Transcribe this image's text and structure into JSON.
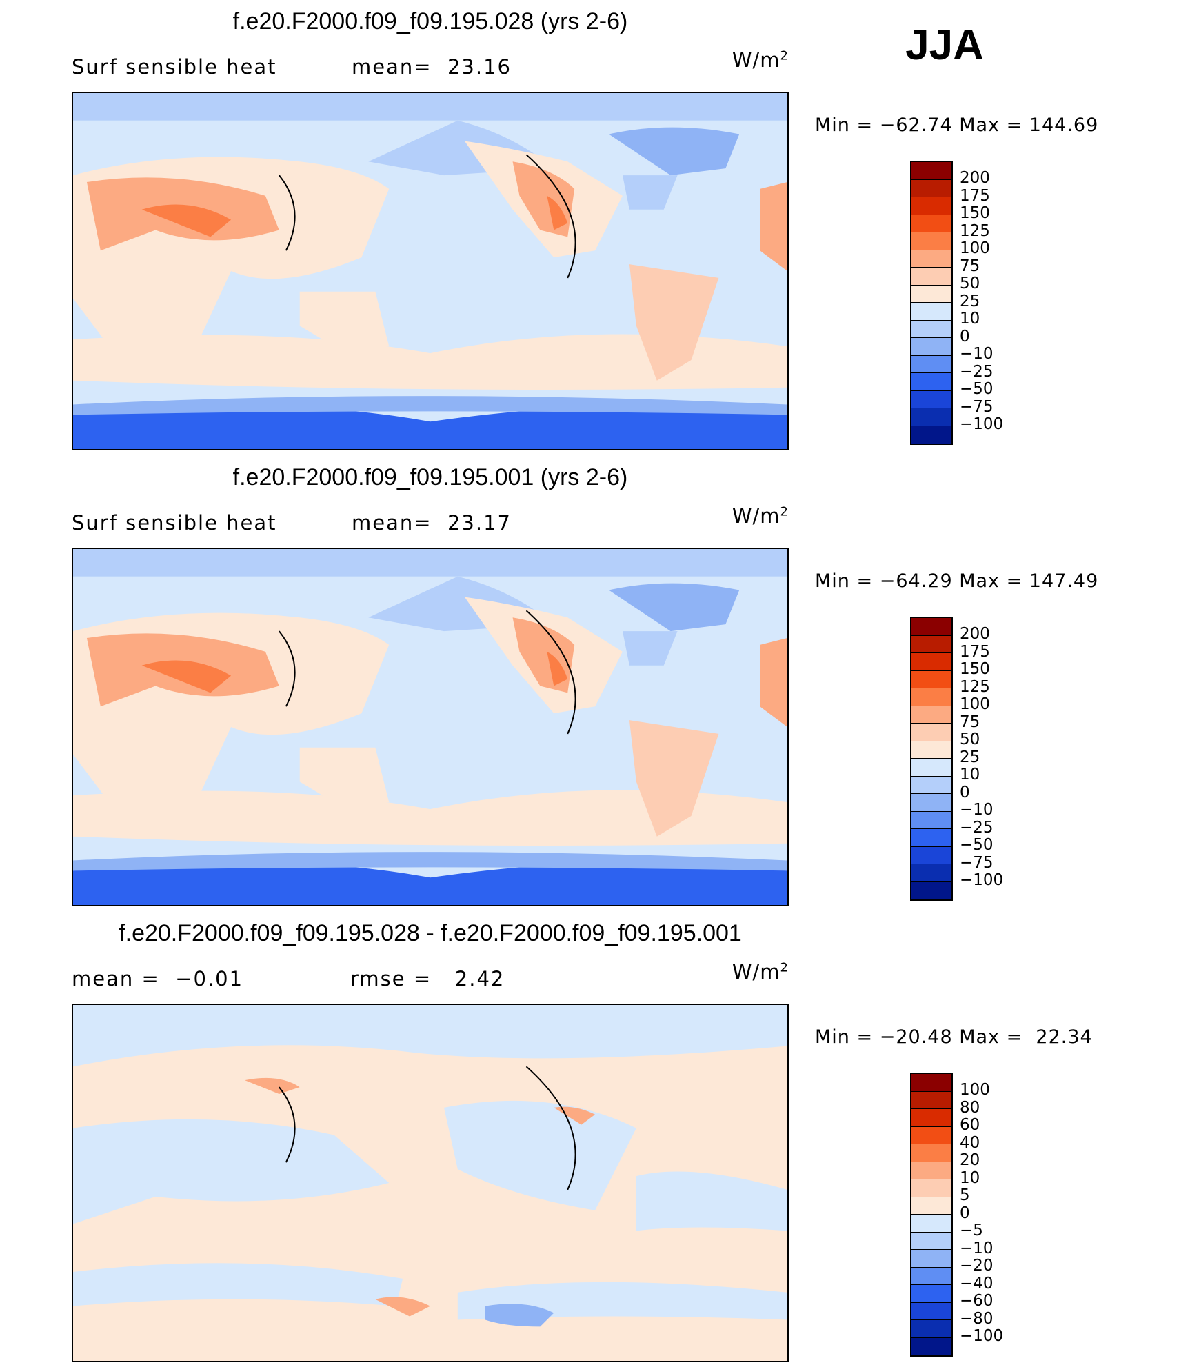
{
  "season": "JJA",
  "panels": [
    {
      "title": "f.e20.F2000.f09_f09.195.028 (yrs 2-6)",
      "left_label": "Surf sensible heat",
      "mid_label": "mean=  23.16",
      "units": "W/m",
      "units_sup": "2",
      "minmax": "Min = −62.74 Max = 144.69",
      "levels": [
        "200",
        "175",
        "150",
        "125",
        "100",
        "75",
        "50",
        "25",
        "10",
        "0",
        "−10",
        "−25",
        "−50",
        "−75",
        "−100"
      ],
      "colors": [
        "#8b0000",
        "#b81c00",
        "#d92b00",
        "#f24e14",
        "#fb7e45",
        "#fcaa82",
        "#fdcdb3",
        "#fde8d7",
        "#d6e8fc",
        "#b4cffa",
        "#8fb3f5",
        "#5f8ef3",
        "#2d62f0",
        "#1a45d8",
        "#0a2eb0",
        "#01168a"
      ]
    },
    {
      "title": "f.e20.F2000.f09_f09.195.001 (yrs 2-6)",
      "left_label": "Surf sensible heat",
      "mid_label": "mean=  23.17",
      "units": "W/m",
      "units_sup": "2",
      "minmax": "Min = −64.29 Max = 147.49",
      "levels": [
        "200",
        "175",
        "150",
        "125",
        "100",
        "75",
        "50",
        "25",
        "10",
        "0",
        "−10",
        "−25",
        "−50",
        "−75",
        "−100"
      ],
      "colors": [
        "#8b0000",
        "#b81c00",
        "#d92b00",
        "#f24e14",
        "#fb7e45",
        "#fcaa82",
        "#fdcdb3",
        "#fde8d7",
        "#d6e8fc",
        "#b4cffa",
        "#8fb3f5",
        "#5f8ef3",
        "#2d62f0",
        "#1a45d8",
        "#0a2eb0",
        "#01168a"
      ]
    },
    {
      "title": "f.e20.F2000.f09_f09.195.028 - f.e20.F2000.f09_f09.195.001",
      "left_label": "mean =  −0.01",
      "mid_label": "rmse =   2.42",
      "units": "W/m",
      "units_sup": "2",
      "minmax": "Min = −20.48 Max =  22.34",
      "levels": [
        "100",
        "80",
        "60",
        "40",
        "20",
        "10",
        "5",
        "0",
        "−5",
        "−10",
        "−20",
        "−40",
        "−60",
        "−80",
        "−100"
      ],
      "colors": [
        "#8b0000",
        "#b81c00",
        "#d92b00",
        "#f24e14",
        "#fb7e45",
        "#fcaa82",
        "#fdcdb3",
        "#fde8d7",
        "#d6e8fc",
        "#b4cffa",
        "#8fb3f5",
        "#5f8ef3",
        "#2d62f0",
        "#1a45d8",
        "#0a2eb0",
        "#01168a"
      ]
    }
  ]
}
